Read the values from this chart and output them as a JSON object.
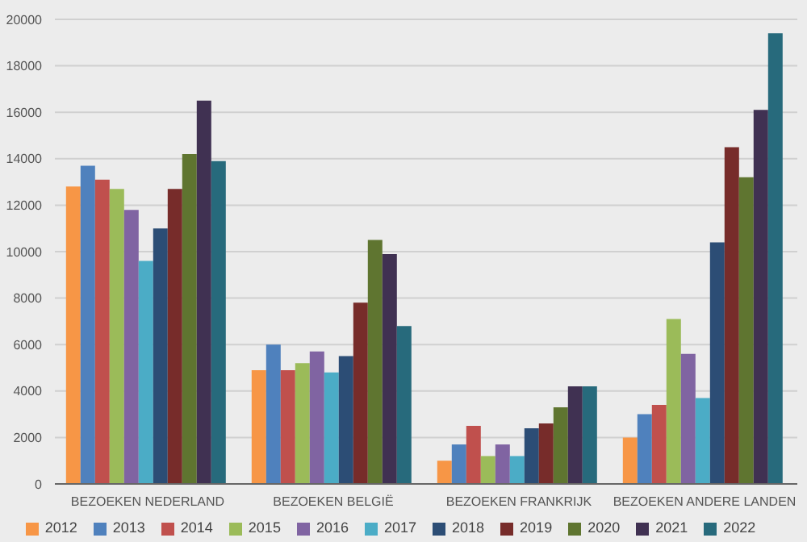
{
  "chart_data": {
    "type": "bar",
    "categories": [
      "BEZOEKEN NEDERLAND",
      "BEZOEKEN BELGIË",
      "BEZOEKEN FRANKRIJK",
      "BEZOEKEN ANDERE LANDEN"
    ],
    "series": [
      {
        "name": "2012",
        "color": "#f79646",
        "values": [
          12800,
          4900,
          1000,
          2000
        ]
      },
      {
        "name": "2013",
        "color": "#4f81bd",
        "values": [
          13700,
          6000,
          1700,
          3000
        ]
      },
      {
        "name": "2014",
        "color": "#c0504d",
        "values": [
          13100,
          4900,
          2500,
          3400
        ]
      },
      {
        "name": "2015",
        "color": "#9bbb59",
        "values": [
          12700,
          5200,
          1200,
          7100
        ]
      },
      {
        "name": "2016",
        "color": "#8064a2",
        "values": [
          11800,
          5700,
          1700,
          5600
        ]
      },
      {
        "name": "2017",
        "color": "#4bacc6",
        "values": [
          9600,
          4800,
          1200,
          3700
        ]
      },
      {
        "name": "2018",
        "color": "#2c4d75",
        "values": [
          11000,
          5500,
          2400,
          10400
        ]
      },
      {
        "name": "2019",
        "color": "#772c2a",
        "values": [
          12700,
          7800,
          2600,
          14500
        ]
      },
      {
        "name": "2020",
        "color": "#5f7530",
        "values": [
          14200,
          10500,
          3300,
          13200
        ]
      },
      {
        "name": "2021",
        "color": "#403152",
        "values": [
          16500,
          9900,
          4200,
          16100
        ]
      },
      {
        "name": "2022",
        "color": "#276a7c",
        "values": [
          13900,
          6800,
          4200,
          19400
        ]
      }
    ],
    "ylim": [
      0,
      20000
    ],
    "yticks": [
      0,
      2000,
      4000,
      6000,
      8000,
      10000,
      12000,
      14000,
      16000,
      18000,
      20000
    ],
    "grid": "y",
    "legend": "bottom"
  }
}
